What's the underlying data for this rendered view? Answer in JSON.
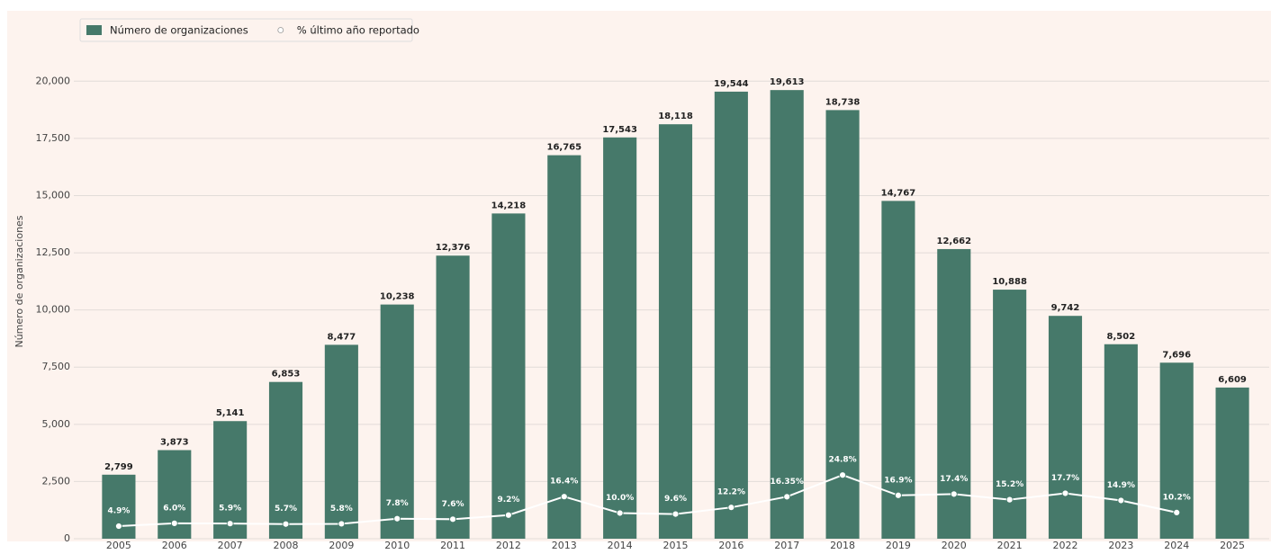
{
  "chart_data": {
    "type": "bar",
    "y_label": "Número de organizaciones",
    "categories": [
      "2005",
      "2006",
      "2007",
      "2008",
      "2009",
      "2010",
      "2011",
      "2012",
      "2013",
      "2014",
      "2015",
      "2016",
      "2017",
      "2018",
      "2019",
      "2020",
      "2021",
      "2022",
      "2023",
      "2024",
      "2025"
    ],
    "series": [
      {
        "name": "Número de organizaciones",
        "type": "bar",
        "color": "#46796a",
        "values": [
          2799,
          3873,
          5141,
          6853,
          8477,
          10238,
          12376,
          14218,
          16765,
          17543,
          18118,
          19544,
          19613,
          18738,
          14767,
          12662,
          10888,
          9742,
          8502,
          7696,
          6609
        ],
        "value_labels": [
          "2,799",
          "3,873",
          "5,141",
          "6,853",
          "8,477",
          "10,238",
          "12,376",
          "14,218",
          "16,765",
          "17,543",
          "18,118",
          "19,544",
          "19,613",
          "18,738",
          "14,767",
          "12,662",
          "10,888",
          "9,742",
          "8,502",
          "7,696",
          "6,609"
        ]
      },
      {
        "name": "% último año reportado",
        "type": "line",
        "color": "#ffffff",
        "axis": "y2",
        "values": [
          4.9,
          6.0,
          5.9,
          5.7,
          5.8,
          7.8,
          7.6,
          9.2,
          16.4,
          10.0,
          9.6,
          12.2,
          16.35,
          24.8,
          16.9,
          17.4,
          15.2,
          17.7,
          14.9,
          10.2,
          null
        ],
        "value_labels": [
          "4.9%",
          "6.0%",
          "5.9%",
          "5.7%",
          "5.8%",
          "7.8%",
          "7.6%",
          "9.2%",
          "16.4%",
          "10.0%",
          "9.6%",
          "12.2%",
          "16.35%",
          "24.8%",
          "16.9%",
          "17.4%",
          "15.2%",
          "17.7%",
          "14.9%",
          "10.2%",
          null
        ]
      }
    ],
    "ylim": [
      0,
      23000
    ],
    "yticks": [
      0,
      {
        "value": 2500,
        "label": "2,500"
      },
      {
        "value": 5000,
        "label": "5,000"
      },
      {
        "value": 7500,
        "label": "7,500"
      },
      {
        "value": 10000,
        "label": "10,000"
      },
      {
        "value": 12500,
        "label": "12,500"
      },
      {
        "value": 15000,
        "label": "15,000"
      },
      {
        "value": 17500,
        "label": "17,500"
      },
      {
        "value": 20000,
        "label": "20,000"
      }
    ],
    "y2lim": [
      0,
      205
    ],
    "grid": true,
    "legend": "upper left"
  }
}
